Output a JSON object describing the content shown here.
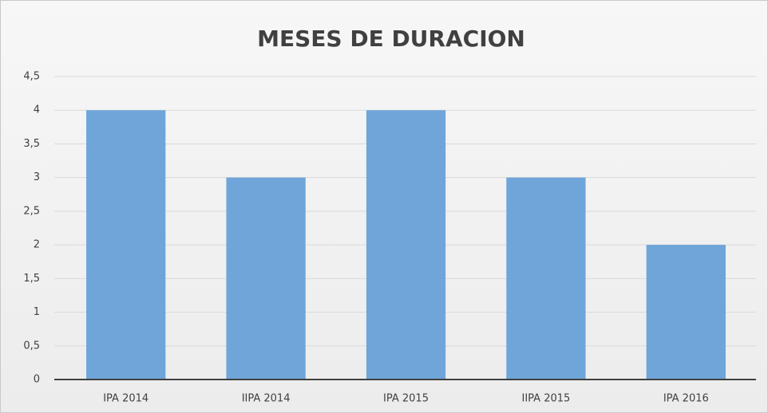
{
  "chart_data": {
    "type": "bar",
    "title": "MESES DE DURACION",
    "categories": [
      "IPA 2014",
      "IIPA 2014",
      "IPA 2015",
      "IIPA 2015",
      "IPA 2016"
    ],
    "values": [
      4,
      3,
      4,
      3,
      2
    ],
    "color": "#6fa5d9",
    "ylim": [
      0,
      4.5
    ],
    "yticks": [
      0,
      {
        "value": 0.5,
        "label": "0,5"
      },
      1,
      {
        "value": 1.5,
        "label": "1,5"
      },
      2,
      {
        "value": 2.5,
        "label": "2,5"
      },
      3,
      {
        "value": 3.5,
        "label": "3,5"
      },
      4,
      {
        "value": 4.5,
        "label": "4,5"
      }
    ],
    "grid": true
  }
}
